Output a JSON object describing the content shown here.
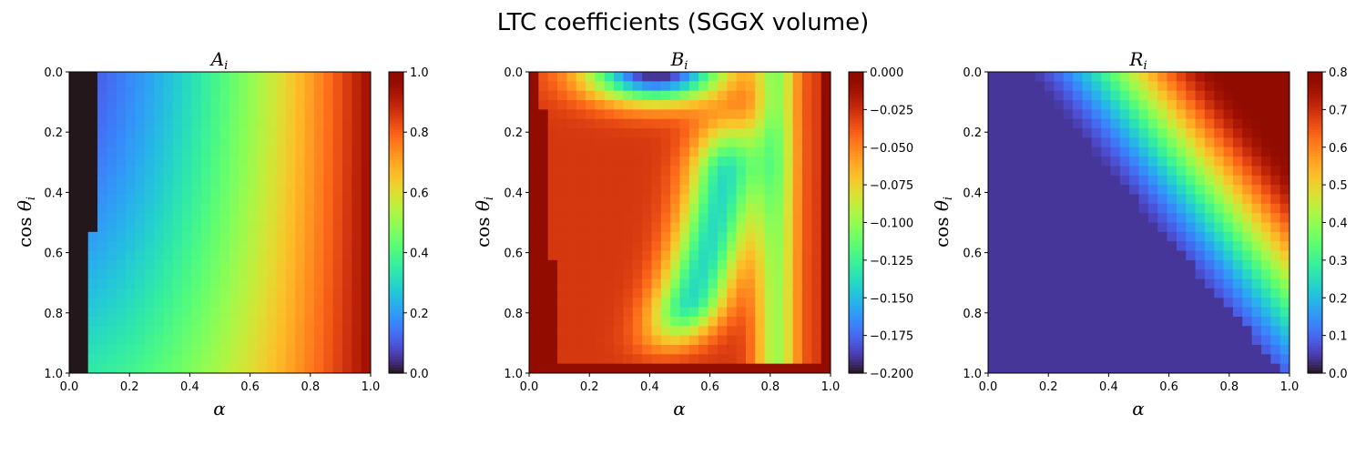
{
  "title": "LTC coefficients (SGGX volume)",
  "colors": {
    "map": "turbo",
    "axis": "#000000",
    "background": "#ffffff"
  },
  "chart_data": [
    {
      "type": "heatmap",
      "title_main": "A",
      "title_sub": "i",
      "xlabel": "α",
      "ylabel_func": "cos",
      "ylabel_var": "θ",
      "ylabel_sub": "i",
      "xlim": [
        0,
        1
      ],
      "ylim": [
        0,
        1
      ],
      "xticks": [
        "0.0",
        "0.2",
        "0.4",
        "0.6",
        "0.8",
        "1.0"
      ],
      "yticks": [
        "0.0",
        "0.2",
        "0.4",
        "0.6",
        "0.8",
        "1.0"
      ],
      "grid_size": [
        32,
        32
      ],
      "colorbar": {
        "min": 0.0,
        "max": 1.0,
        "ticks": [
          "1.0",
          "0.8",
          "0.6",
          "0.4",
          "0.2",
          "0.0"
        ]
      }
    },
    {
      "type": "heatmap",
      "title_main": "B",
      "title_sub": "i",
      "xlabel": "α",
      "ylabel_func": "cos",
      "ylabel_var": "θ",
      "ylabel_sub": "i",
      "xlim": [
        0,
        1
      ],
      "ylim": [
        0,
        1
      ],
      "xticks": [
        "0.0",
        "0.2",
        "0.4",
        "0.6",
        "0.8",
        "1.0"
      ],
      "yticks": [
        "0.0",
        "0.2",
        "0.4",
        "0.6",
        "0.8",
        "1.0"
      ],
      "grid_size": [
        32,
        32
      ],
      "colorbar": {
        "min": -0.2,
        "max": 0.0,
        "ticks": [
          "0.000",
          "−0.025",
          "−0.050",
          "−0.075",
          "−0.100",
          "−0.125",
          "−0.150",
          "−0.175",
          "−0.200"
        ]
      }
    },
    {
      "type": "heatmap",
      "title_main": "R",
      "title_sub": "i",
      "xlabel": "α",
      "ylabel_func": "cos",
      "ylabel_var": "θ",
      "ylabel_sub": "i",
      "xlim": [
        0,
        1
      ],
      "ylim": [
        0,
        1
      ],
      "xticks": [
        "0.0",
        "0.2",
        "0.4",
        "0.6",
        "0.8",
        "1.0"
      ],
      "yticks": [
        "0.0",
        "0.2",
        "0.4",
        "0.6",
        "0.8",
        "1.0"
      ],
      "grid_size": [
        32,
        32
      ],
      "colorbar": {
        "min": 0.0,
        "max": 0.8,
        "ticks": [
          "0.8",
          "0.7",
          "0.6",
          "0.5",
          "0.4",
          "0.3",
          "0.2",
          "0.1",
          "0.0"
        ]
      }
    }
  ]
}
